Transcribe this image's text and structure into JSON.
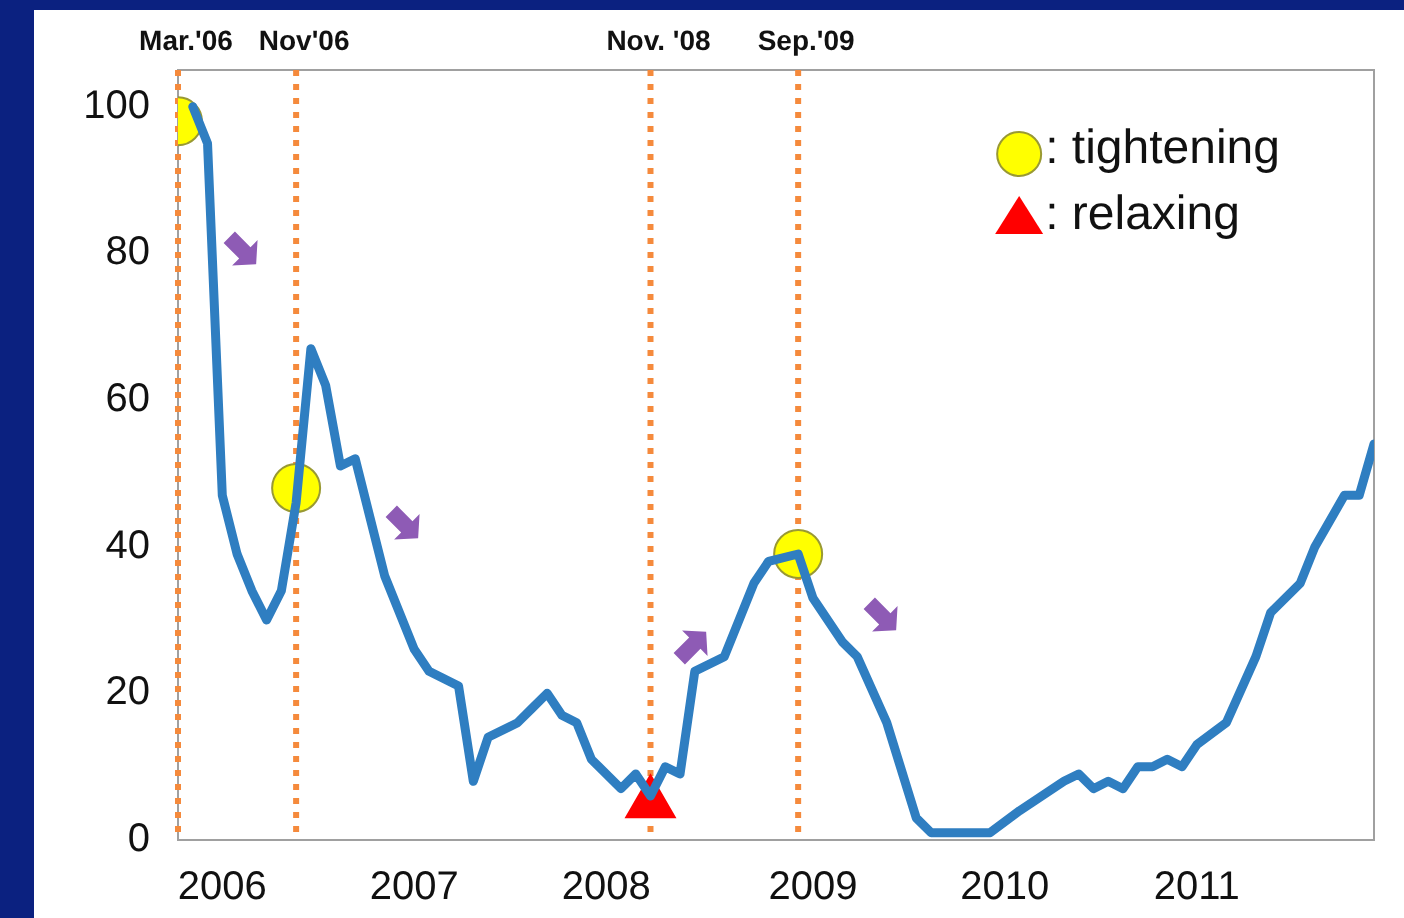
{
  "chart_data": {
    "type": "line",
    "xlim": [
      "2006-03",
      "2012-12"
    ],
    "ylim": [
      0,
      105
    ],
    "yticks": [
      0,
      20,
      40,
      60,
      80,
      100
    ],
    "xticks": [
      {
        "value": "2006-06",
        "label": "2006"
      },
      {
        "value": "2007-07",
        "label": "2007"
      },
      {
        "value": "2008-08",
        "label": "2008"
      },
      {
        "value": "2009-10",
        "label": "2009"
      },
      {
        "value": "2010-11",
        "label": "2010"
      },
      {
        "value": "2011-12",
        "label": "2011"
      }
    ],
    "grid": false,
    "legend": "top right",
    "line_style": "solid",
    "ref_lines": [
      {
        "axis": "x",
        "value": "2006-03",
        "label": "Mar.'06",
        "color": "#f58a3c",
        "line_style": "dotted"
      },
      {
        "axis": "x",
        "value": "2006-11",
        "label": "Nov'06",
        "color": "#f58a3c",
        "line_style": "dotted"
      },
      {
        "axis": "x",
        "value": "2008-11",
        "label": "Nov. '08",
        "color": "#f58a3c",
        "line_style": "dotted"
      },
      {
        "axis": "x",
        "value": "2009-09",
        "label": "Sep.'09",
        "color": "#f58a3c",
        "line_style": "dotted"
      }
    ],
    "series": [
      {
        "color": "#2f7ec1",
        "marker": "none",
        "x": [
          "2006-04",
          "2006-05",
          "2006-06",
          "2006-07",
          "2006-08",
          "2006-09",
          "2006-10",
          "2006-11",
          "2006-12",
          "2007-01",
          "2007-02",
          "2007-03",
          "2007-04",
          "2007-05",
          "2007-07",
          "2007-08",
          "2007-10",
          "2007-11",
          "2007-12",
          "2008-02",
          "2008-03",
          "2008-04",
          "2008-05",
          "2008-06",
          "2008-07",
          "2008-09",
          "2008-10",
          "2008-11",
          "2008-12",
          "2009-01",
          "2009-02",
          "2009-03",
          "2009-04",
          "2009-06",
          "2009-07",
          "2009-09",
          "2009-10",
          "2009-12",
          "2010-01",
          "2010-03",
          "2010-05",
          "2010-06",
          "2010-10",
          "2010-12",
          "2011-03",
          "2011-04",
          "2011-05",
          "2011-06",
          "2011-07",
          "2011-08",
          "2011-09",
          "2011-10",
          "2011-11",
          "2011-12",
          "2012-02",
          "2012-04",
          "2012-05",
          "2012-07",
          "2012-08",
          "2012-10",
          "2012-11",
          "2012-12"
        ],
        "values": [
          100,
          95,
          47,
          39,
          34,
          30,
          34,
          46,
          67,
          62,
          51,
          52,
          44,
          36,
          26,
          23,
          21,
          8,
          14,
          16,
          18,
          20,
          17,
          16,
          11,
          7,
          9,
          6,
          10,
          9,
          23,
          24,
          25,
          35,
          38,
          39,
          33,
          27,
          25,
          16,
          3,
          1,
          1,
          4,
          8,
          9,
          7,
          8,
          7,
          10,
          10,
          11,
          10,
          13,
          16,
          25,
          31,
          35,
          40,
          47,
          47,
          54
        ]
      },
      {
        "type": "scatter",
        "name": ": tightening",
        "color": "#ffff00",
        "marker": "circle",
        "x": [
          "2006-03",
          "2006-11",
          "2009-09"
        ],
        "values": [
          98,
          48,
          39
        ]
      },
      {
        "type": "scatter",
        "name": ": relaxing",
        "color": "#ff0000",
        "marker": "triangle",
        "x": [
          "2008-11"
        ],
        "values": [
          5
        ]
      }
    ]
  }
}
